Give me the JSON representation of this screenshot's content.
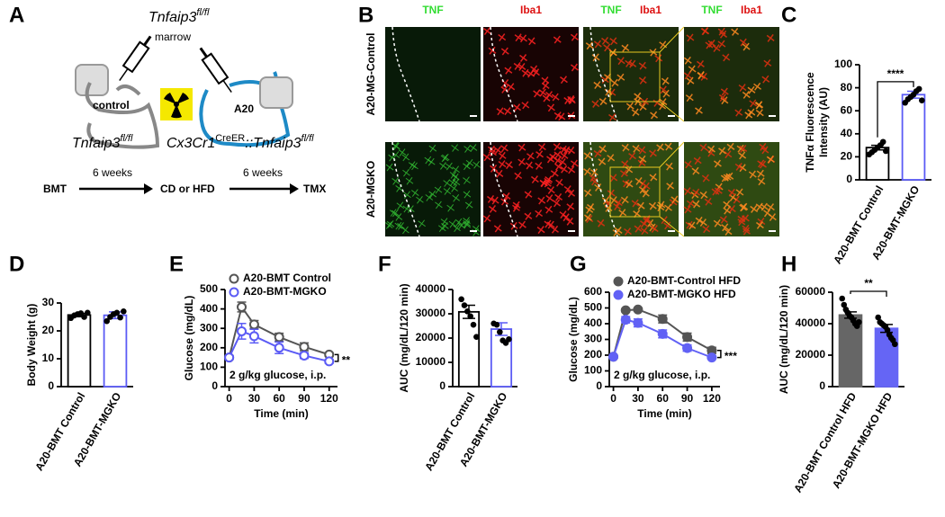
{
  "panel_labels": [
    "A",
    "B",
    "C",
    "D",
    "E",
    "F",
    "G",
    "H"
  ],
  "diagram": {
    "donor_label": {
      "base": "Tnfaip3",
      "sup": "fl/fl"
    },
    "donor_sub": "marrow",
    "control_mouse": "control",
    "a20_mouse": "A20",
    "control_genotype": {
      "base": "Tnfaip3",
      "sup": "fl/fl"
    },
    "a20_genotype": {
      "base1": "Cx3Cr1",
      "sup1": "CreER",
      "sep": "::",
      "base2": "Tnfaip3",
      "sup2": "fl/fl"
    },
    "timeline": [
      "BMT",
      "CD or HFD",
      "TMX"
    ],
    "intervals": [
      "6 weeks",
      "6 weeks"
    ]
  },
  "images": {
    "columns": [
      [
        {
          "text": "TNF",
          "color": "#33dd33"
        }
      ],
      [
        {
          "text": "Iba1",
          "color": "#dd1111"
        }
      ],
      [
        {
          "text": "TNF",
          "color": "#33dd33"
        },
        {
          "text": "Iba1",
          "color": "#dd1111"
        }
      ],
      [
        {
          "text": "TNF",
          "color": "#33dd33"
        },
        {
          "text": "Iba1",
          "color": "#dd1111"
        }
      ]
    ],
    "rows": [
      "A20-MG-Control",
      "A20-MGKO"
    ]
  },
  "chart_data": [
    {
      "type": "bar",
      "ylabel": [
        "TNFα Fluorescence",
        "Intensity (AU)"
      ],
      "categories": [
        "A20-BMT Control",
        "A20-BMT-MGKO"
      ],
      "values": [
        28,
        74
      ],
      "errors": [
        2,
        3
      ],
      "points": [
        [
          22,
          24,
          26,
          28,
          30,
          33,
          25
        ],
        [
          67,
          70,
          72,
          74,
          77,
          79,
          69
        ]
      ],
      "colors": [
        "#000000",
        "#5b5bf5"
      ],
      "fills": [
        "#ffffff",
        "#ffffff"
      ],
      "ylim": [
        0,
        100
      ],
      "yticks": [
        0,
        20,
        40,
        60,
        80,
        100
      ],
      "significance": "****"
    },
    {
      "type": "bar",
      "ylabel": "Body Weight (g)",
      "categories": [
        "A20-BMT Control",
        "A20-BMT-MGKO"
      ],
      "values": [
        25.7,
        25.6
      ],
      "errors": [
        0.6,
        1.2
      ],
      "points": [
        [
          24.6,
          25.5,
          26,
          26.3,
          25,
          26.5
        ],
        [
          23.5,
          25,
          26,
          26.5,
          24.8,
          27
        ]
      ],
      "colors": [
        "#000000",
        "#5b5bf5"
      ],
      "fills": [
        "#ffffff",
        "#ffffff"
      ],
      "ylim": [
        0,
        30
      ],
      "yticks": [
        0,
        10,
        20,
        30
      ]
    },
    {
      "type": "line",
      "ylabel": "Glucose (mg/dL)",
      "xlabel": "Time (min)",
      "x": [
        0,
        15,
        30,
        60,
        90,
        120
      ],
      "xlim": [
        -5,
        130
      ],
      "xticks": [
        0,
        30,
        60,
        90,
        120
      ],
      "ylim": [
        0,
        500
      ],
      "yticks": [
        0,
        100,
        200,
        300,
        400,
        500
      ],
      "series": [
        {
          "name": "A20-BMT Control",
          "color": "#555555",
          "marker_fill": "#ffffff",
          "values": [
            150,
            410,
            320,
            255,
            205,
            165
          ],
          "errors": [
            10,
            25,
            20,
            20,
            20,
            10
          ]
        },
        {
          "name": "A20-BMT-MGKO",
          "color": "#5b5bf5",
          "marker_fill": "#ffffff",
          "values": [
            150,
            285,
            260,
            200,
            160,
            130
          ],
          "errors": [
            10,
            40,
            35,
            30,
            15,
            10
          ]
        }
      ],
      "note": "2 g/kg glucose, i.p.",
      "significance": "**"
    },
    {
      "type": "bar",
      "ylabel": "AUC (mg/dL/120 min)",
      "categories": [
        "A20-BMT Control",
        "A20-BMT-MGKO"
      ],
      "values": [
        30800,
        23700
      ],
      "errors": [
        2700,
        2600
      ],
      "points": [
        [
          36000,
          33500,
          31000,
          29000,
          25500,
          20500
        ],
        [
          26000,
          25500,
          22500,
          19000,
          18000,
          19500
        ]
      ],
      "colors": [
        "#000000",
        "#5b5bf5"
      ],
      "fills": [
        "#ffffff",
        "#ffffff"
      ],
      "ylim": [
        0,
        40000
      ],
      "yticks": [
        0,
        10000,
        20000,
        30000,
        40000
      ]
    },
    {
      "type": "line",
      "ylabel": "Glucose (mg/dL)",
      "xlabel": "Time (min)",
      "x": [
        0,
        15,
        30,
        60,
        90,
        120
      ],
      "xlim": [
        -5,
        130
      ],
      "xticks": [
        0,
        30,
        60,
        90,
        120
      ],
      "ylim": [
        0,
        600
      ],
      "yticks": [
        0,
        100,
        200,
        300,
        400,
        500,
        600
      ],
      "series": [
        {
          "name": "A20-BMT-Control HFD",
          "color": "#555555",
          "marker_fill": "#555555",
          "values": [
            190,
            485,
            490,
            430,
            315,
            230
          ],
          "errors": [
            8,
            10,
            10,
            25,
            25,
            20
          ]
        },
        {
          "name": "A20-BMT-MGKO HFD",
          "color": "#6161f5",
          "marker_fill": "#6161f5",
          "values": [
            190,
            425,
            405,
            335,
            245,
            185
          ],
          "errors": [
            8,
            20,
            25,
            25,
            20,
            10
          ]
        }
      ],
      "note": "2 g/kg glucose, i.p.",
      "significance": "***"
    },
    {
      "type": "bar",
      "ylabel": "AUC (mg/dL/120 min)",
      "categories": [
        "A20-BMT Control HFD",
        "A20-BMT-MGKO HFD"
      ],
      "values": [
        45500,
        37000
      ],
      "errors": [
        2000,
        2500
      ],
      "points": [
        [
          56000,
          52000,
          49000,
          47000,
          45000,
          44000,
          42000,
          40000,
          38500,
          41000
        ],
        [
          44000,
          41000,
          40000,
          39000,
          38000,
          36000,
          33000,
          31000,
          29500,
          27000
        ]
      ],
      "colors": [
        "#666666",
        "#6565f5"
      ],
      "fills": [
        "#666666",
        "#6565f5"
      ],
      "ylim": [
        0,
        60000
      ],
      "yticks": [
        0,
        20000,
        40000,
        60000
      ],
      "significance": "**"
    }
  ]
}
